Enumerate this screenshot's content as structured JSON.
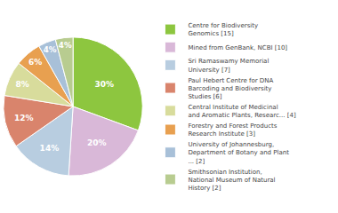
{
  "chart_data": {
    "type": "pie",
    "categories": [
      "Centre for Biodiversity\nGenomics [15]",
      "Mined from GenBank, NCBI [10]",
      "Sri Ramaswamy Memorial\nUniversity [7]",
      "Paul Hebert Centre for DNA\nBarcoding and Biodiversity\nStudies [6]",
      "Central Institute of Medicinal\nand Aromatic Plants, Researc... [4]",
      "Forestry and Forest Products\nResearch Institute [3]",
      "University of Johannesburg,\nDepartment of Botany and Plant\n... [2]",
      "Smithsonian Institution,\nNational Museum of Natural\nHistory [2]"
    ],
    "values": [
      30,
      20,
      14,
      12,
      8,
      6,
      4,
      4
    ],
    "value_labels": [
      "30%",
      "20%",
      "14%",
      "12%",
      "8%",
      "6%",
      "4%",
      "4%"
    ],
    "colors": [
      "#8DC63F",
      "#D9B8D8",
      "#B8CDE0",
      "#D9846C",
      "#D8DC9C",
      "#E8A050",
      "#A8C0D8",
      "#B8CC90"
    ],
    "data_labels": true,
    "legend": "right"
  }
}
